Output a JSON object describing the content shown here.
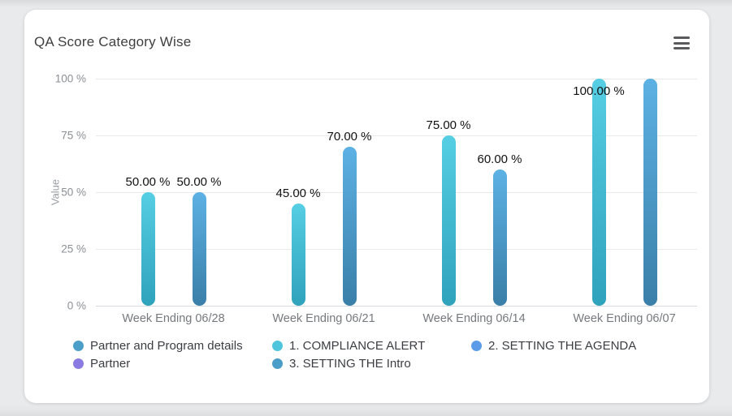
{
  "card": {
    "title": "QA Score Category Wise",
    "menu_icon": "hamburger-icon"
  },
  "chart_data": {
    "type": "bar",
    "title": "QA Score Category Wise",
    "xlabel": "",
    "ylabel": "Value",
    "ylim": [
      0,
      100
    ],
    "grid": true,
    "yticks": [
      {
        "value": 100,
        "label": "100 %"
      },
      {
        "value": 75,
        "label": "75 %"
      },
      {
        "value": 50,
        "label": "50 %"
      },
      {
        "value": 25,
        "label": "25 %"
      },
      {
        "value": 0,
        "label": "0 %"
      }
    ],
    "categories": [
      "Week Ending 06/28",
      "Week Ending 06/21",
      "Week Ending 06/14",
      "Week Ending 06/07"
    ],
    "series": [
      {
        "name": "1. COMPLIANCE ALERT",
        "values": [
          50,
          45,
          75,
          100
        ],
        "labels": [
          "50.00 %",
          "45.00 %",
          "75.00 %",
          "100.00 %"
        ],
        "color_top": "#56CEE3",
        "color_bottom": "#2FA2BC"
      },
      {
        "name": "3. SETTING THE Intro",
        "values": [
          50,
          70,
          60,
          100
        ],
        "labels": [
          "50.00 %",
          "70.00 %",
          "60.00 %",
          null
        ],
        "color_top": "#5DB1E4",
        "color_bottom": "#3A7FA8"
      }
    ],
    "legend": {
      "position": "bottom",
      "items": [
        {
          "label": "Partner and Program details",
          "color": "#4C9FC8"
        },
        {
          "label": "1. COMPLIANCE ALERT",
          "color": "#4FC5DD"
        },
        {
          "label": "2. SETTING THE AGENDA",
          "color": "#5C9BE8"
        },
        {
          "label": "Partner",
          "color": "#8A7BE3"
        },
        {
          "label": "3. SETTING THE Intro",
          "color": "#4A9CC9"
        }
      ]
    }
  }
}
